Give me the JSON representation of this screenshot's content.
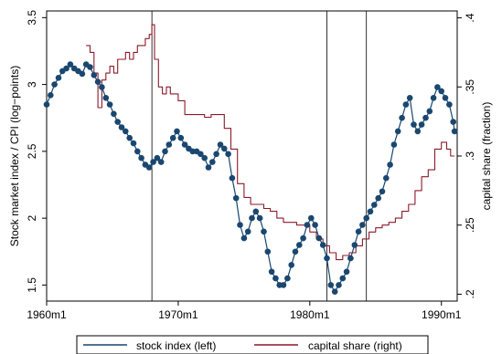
{
  "chart_data": {
    "type": "line",
    "title": "",
    "xlabel": "",
    "ylabel_left": "Stock market index / CPI (log−points)",
    "ylabel_right": "capital share (fraction)",
    "xlim": [
      1960.0,
      1991.2
    ],
    "ylim_left": [
      1.38,
      3.55
    ],
    "ylim_right": [
      0.195,
      0.405
    ],
    "x_ticks": [
      {
        "value": 1960,
        "label": "1960m1"
      },
      {
        "value": 1970,
        "label": "1970m1"
      },
      {
        "value": 1980,
        "label": "1980m1"
      },
      {
        "value": 1990,
        "label": "1990m1"
      }
    ],
    "y_ticks_left": [
      {
        "value": 1.5,
        "label": "1.5"
      },
      {
        "value": 2,
        "label": "2"
      },
      {
        "value": 2.5,
        "label": "2.5"
      },
      {
        "value": 3,
        "label": "3"
      },
      {
        "value": 3.5,
        "label": "3.5"
      }
    ],
    "y_ticks_right": [
      {
        "value": 0.2,
        "label": ".2"
      },
      {
        "value": 0.25,
        "label": ".25"
      },
      {
        "value": 0.3,
        "label": ".3"
      },
      {
        "value": 0.35,
        "label": ".35"
      },
      {
        "value": 0.4,
        "label": ".4"
      }
    ],
    "vlines": [
      1968.0,
      1981.3,
      1984.3
    ],
    "grid": false,
    "legend_position": "bottom",
    "series": [
      {
        "name": "stock index (left)",
        "axis": "left",
        "color": "#1a476f",
        "markers": true,
        "points": [
          [
            1960.0,
            2.85
          ],
          [
            1960.3,
            2.92
          ],
          [
            1960.6,
            3.0
          ],
          [
            1960.9,
            3.05
          ],
          [
            1961.2,
            3.1
          ],
          [
            1961.5,
            3.12
          ],
          [
            1961.8,
            3.15
          ],
          [
            1962.1,
            3.12
          ],
          [
            1962.4,
            3.1
          ],
          [
            1962.7,
            3.08
          ],
          [
            1963.0,
            3.15
          ],
          [
            1963.3,
            3.13
          ],
          [
            1963.6,
            3.07
          ],
          [
            1963.9,
            3.02
          ],
          [
            1964.2,
            2.98
          ],
          [
            1964.5,
            2.9
          ],
          [
            1964.8,
            2.85
          ],
          [
            1965.1,
            2.78
          ],
          [
            1965.4,
            2.72
          ],
          [
            1965.7,
            2.68
          ],
          [
            1966.0,
            2.65
          ],
          [
            1966.3,
            2.6
          ],
          [
            1966.6,
            2.56
          ],
          [
            1966.9,
            2.5
          ],
          [
            1967.2,
            2.45
          ],
          [
            1967.5,
            2.4
          ],
          [
            1967.8,
            2.38
          ],
          [
            1968.1,
            2.42
          ],
          [
            1968.4,
            2.45
          ],
          [
            1968.7,
            2.42
          ],
          [
            1969.0,
            2.5
          ],
          [
            1969.3,
            2.55
          ],
          [
            1969.6,
            2.6
          ],
          [
            1969.9,
            2.65
          ],
          [
            1970.2,
            2.6
          ],
          [
            1970.5,
            2.55
          ],
          [
            1970.8,
            2.52
          ],
          [
            1971.1,
            2.5
          ],
          [
            1971.4,
            2.5
          ],
          [
            1971.7,
            2.48
          ],
          [
            1972.0,
            2.45
          ],
          [
            1972.3,
            2.38
          ],
          [
            1972.6,
            2.42
          ],
          [
            1972.9,
            2.48
          ],
          [
            1973.2,
            2.55
          ],
          [
            1973.5,
            2.52
          ],
          [
            1973.8,
            2.48
          ],
          [
            1974.1,
            2.3
          ],
          [
            1974.4,
            2.15
          ],
          [
            1974.7,
            1.95
          ],
          [
            1975.0,
            1.85
          ],
          [
            1975.3,
            1.9
          ],
          [
            1975.6,
            2.0
          ],
          [
            1975.9,
            2.05
          ],
          [
            1976.2,
            2.0
          ],
          [
            1976.5,
            1.9
          ],
          [
            1976.8,
            1.75
          ],
          [
            1977.1,
            1.6
          ],
          [
            1977.4,
            1.55
          ],
          [
            1977.7,
            1.5
          ],
          [
            1978.0,
            1.5
          ],
          [
            1978.3,
            1.55
          ],
          [
            1978.6,
            1.65
          ],
          [
            1978.9,
            1.75
          ],
          [
            1979.2,
            1.8
          ],
          [
            1979.5,
            1.85
          ],
          [
            1979.8,
            1.95
          ],
          [
            1980.1,
            2.0
          ],
          [
            1980.4,
            1.95
          ],
          [
            1980.7,
            1.85
          ],
          [
            1981.0,
            1.8
          ],
          [
            1981.3,
            1.7
          ],
          [
            1981.6,
            1.5
          ],
          [
            1981.9,
            1.45
          ],
          [
            1982.2,
            1.5
          ],
          [
            1982.5,
            1.55
          ],
          [
            1982.8,
            1.6
          ],
          [
            1983.1,
            1.7
          ],
          [
            1983.4,
            1.8
          ],
          [
            1983.7,
            1.9
          ],
          [
            1984.0,
            1.95
          ],
          [
            1984.3,
            2.0
          ],
          [
            1984.6,
            2.05
          ],
          [
            1984.9,
            2.1
          ],
          [
            1985.2,
            2.15
          ],
          [
            1985.5,
            2.2
          ],
          [
            1985.8,
            2.3
          ],
          [
            1986.1,
            2.4
          ],
          [
            1986.4,
            2.55
          ],
          [
            1986.7,
            2.65
          ],
          [
            1987.0,
            2.75
          ],
          [
            1987.3,
            2.85
          ],
          [
            1987.6,
            2.9
          ],
          [
            1987.9,
            2.7
          ],
          [
            1988.2,
            2.65
          ],
          [
            1988.5,
            2.7
          ],
          [
            1988.8,
            2.75
          ],
          [
            1989.1,
            2.8
          ],
          [
            1989.4,
            2.9
          ],
          [
            1989.7,
            2.98
          ],
          [
            1990.0,
            2.95
          ],
          [
            1990.3,
            2.9
          ],
          [
            1990.6,
            2.85
          ],
          [
            1990.9,
            2.72
          ],
          [
            1991.0,
            2.65
          ]
        ]
      },
      {
        "name": "capital share (right)",
        "axis": "right",
        "color": "#8b1a2b",
        "markers": false,
        "points": [
          [
            1963.0,
            0.38
          ],
          [
            1963.3,
            0.375
          ],
          [
            1963.6,
            0.36
          ],
          [
            1963.9,
            0.335
          ],
          [
            1964.2,
            0.355
          ],
          [
            1964.5,
            0.36
          ],
          [
            1964.8,
            0.365
          ],
          [
            1965.1,
            0.36
          ],
          [
            1965.4,
            0.37
          ],
          [
            1965.7,
            0.37
          ],
          [
            1966.0,
            0.375
          ],
          [
            1966.3,
            0.37
          ],
          [
            1966.6,
            0.375
          ],
          [
            1966.9,
            0.38
          ],
          [
            1967.2,
            0.38
          ],
          [
            1967.5,
            0.385
          ],
          [
            1967.8,
            0.388
          ],
          [
            1968.0,
            0.395
          ],
          [
            1968.2,
            0.37
          ],
          [
            1968.5,
            0.35
          ],
          [
            1968.8,
            0.345
          ],
          [
            1969.1,
            0.35
          ],
          [
            1969.4,
            0.345
          ],
          [
            1969.7,
            0.345
          ],
          [
            1970.0,
            0.34
          ],
          [
            1970.5,
            0.33
          ],
          [
            1971.0,
            0.33
          ],
          [
            1971.5,
            0.33
          ],
          [
            1972.0,
            0.328
          ],
          [
            1972.5,
            0.33
          ],
          [
            1973.0,
            0.33
          ],
          [
            1973.5,
            0.32
          ],
          [
            1974.0,
            0.305
          ],
          [
            1974.5,
            0.28
          ],
          [
            1975.0,
            0.27
          ],
          [
            1975.5,
            0.265
          ],
          [
            1976.0,
            0.265
          ],
          [
            1976.5,
            0.262
          ],
          [
            1977.0,
            0.26
          ],
          [
            1977.5,
            0.255
          ],
          [
            1978.0,
            0.252
          ],
          [
            1978.5,
            0.252
          ],
          [
            1979.0,
            0.25
          ],
          [
            1979.5,
            0.25
          ],
          [
            1980.0,
            0.245
          ],
          [
            1980.5,
            0.24
          ],
          [
            1981.0,
            0.235
          ],
          [
            1981.5,
            0.23
          ],
          [
            1982.0,
            0.225
          ],
          [
            1982.5,
            0.228
          ],
          [
            1983.0,
            0.23
          ],
          [
            1983.5,
            0.235
          ],
          [
            1984.0,
            0.24
          ],
          [
            1984.5,
            0.245
          ],
          [
            1985.0,
            0.248
          ],
          [
            1985.5,
            0.25
          ],
          [
            1986.0,
            0.252
          ],
          [
            1986.5,
            0.255
          ],
          [
            1987.0,
            0.26
          ],
          [
            1987.5,
            0.265
          ],
          [
            1988.0,
            0.275
          ],
          [
            1988.5,
            0.285
          ],
          [
            1989.0,
            0.29
          ],
          [
            1989.5,
            0.305
          ],
          [
            1990.0,
            0.31
          ],
          [
            1990.4,
            0.305
          ],
          [
            1990.7,
            0.3
          ],
          [
            1991.0,
            0.3
          ]
        ]
      }
    ]
  }
}
